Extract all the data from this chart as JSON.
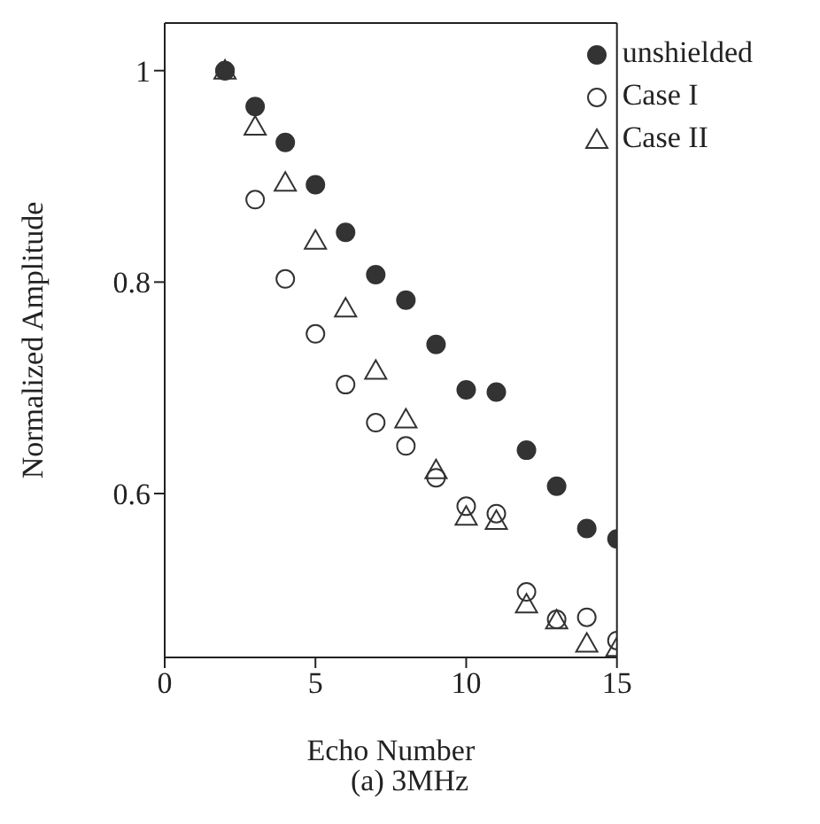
{
  "chart_data": {
    "type": "scatter",
    "xlabel": "Echo Number",
    "ylabel": "Normalized Amplitude",
    "annotations": [
      "(a) 3MHz"
    ],
    "xlim": [
      0,
      15
    ],
    "xticks": [
      0,
      5,
      10,
      15
    ],
    "ylim": [
      0.445,
      1.045
    ],
    "yticks": [
      0.6,
      0.8,
      1
    ],
    "grid": false,
    "legend": "top right",
    "series": [
      {
        "name": "unshielded",
        "color": "#333333",
        "marker": "circle",
        "x": [
          2,
          3,
          4,
          5,
          6,
          7,
          8,
          9,
          10,
          11,
          12,
          13,
          14,
          15
        ],
        "values": [
          1.0,
          0.966,
          0.932,
          0.892,
          0.847,
          0.807,
          0.783,
          0.741,
          0.698,
          0.696,
          0.641,
          0.607,
          0.567,
          0.557
        ]
      },
      {
        "name": "Case I",
        "color": "#333333",
        "marker": "circle",
        "x": [
          2,
          3,
          4,
          5,
          6,
          7,
          8,
          9,
          10,
          11,
          12,
          13,
          14,
          15
        ],
        "values": [
          1.0,
          0.878,
          0.803,
          0.751,
          0.703,
          0.667,
          0.645,
          0.615,
          0.588,
          0.581,
          0.507,
          0.481,
          0.483,
          0.461
        ]
      },
      {
        "name": "Case II",
        "color": "#333333",
        "marker": "triangle",
        "x": [
          2,
          3,
          4,
          5,
          6,
          7,
          8,
          9,
          10,
          11,
          12,
          13,
          14,
          15
        ],
        "values": [
          1.0,
          0.947,
          0.894,
          0.839,
          0.775,
          0.716,
          0.67,
          0.622,
          0.578,
          0.574,
          0.495,
          0.48,
          0.458,
          0.454
        ]
      }
    ]
  }
}
